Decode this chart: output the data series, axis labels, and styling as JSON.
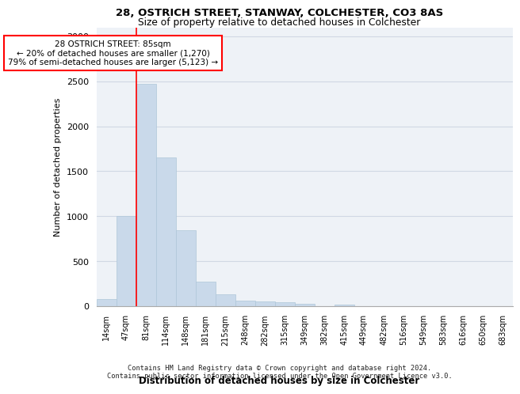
{
  "title_line1": "28, OSTRICH STREET, STANWAY, COLCHESTER, CO3 8AS",
  "title_line2": "Size of property relative to detached houses in Colchester",
  "xlabel": "Distribution of detached houses by size in Colchester",
  "ylabel": "Number of detached properties",
  "footer_line1": "Contains HM Land Registry data © Crown copyright and database right 2024.",
  "footer_line2": "Contains public sector information licensed under the Open Government Licence v3.0.",
  "categories": [
    "14sqm",
    "47sqm",
    "81sqm",
    "114sqm",
    "148sqm",
    "181sqm",
    "215sqm",
    "248sqm",
    "282sqm",
    "315sqm",
    "349sqm",
    "382sqm",
    "415sqm",
    "449sqm",
    "482sqm",
    "516sqm",
    "549sqm",
    "583sqm",
    "616sqm",
    "650sqm",
    "683sqm"
  ],
  "values": [
    75,
    1000,
    2470,
    1650,
    840,
    270,
    130,
    65,
    50,
    45,
    30,
    0,
    20,
    0,
    0,
    0,
    0,
    0,
    0,
    0,
    0
  ],
  "bar_color": "#c9d9ea",
  "bar_edge_color": "#aec6d9",
  "annotation_text": "28 OSTRICH STREET: 85sqm\n← 20% of detached houses are smaller (1,270)\n79% of semi-detached houses are larger (5,123) →",
  "annotation_box_color": "white",
  "annotation_box_edge_color": "red",
  "vline_color": "red",
  "vline_x": 1.5,
  "ylim": [
    0,
    3100
  ],
  "yticks": [
    0,
    500,
    1000,
    1500,
    2000,
    2500,
    3000
  ],
  "grid_color": "#d0d8e4",
  "background_color": "#eef2f7"
}
